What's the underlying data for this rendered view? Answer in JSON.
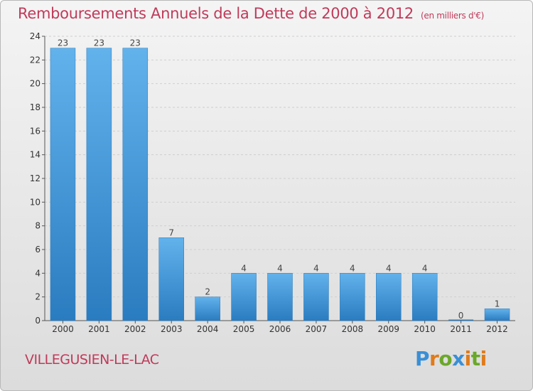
{
  "title": "Remboursements Annuels de la Dette de 2000 à 2012",
  "subtitle": "(en milliers d'€)",
  "place": "VILLEGUSIEN-LE-LAC",
  "logo": {
    "text": "Proxiti",
    "letters": [
      "P",
      "r",
      "o",
      "x",
      "i",
      "t",
      "i"
    ],
    "colors": [
      "#3a8fd6",
      "#e07b1a",
      "#6aa82a",
      "#3a8fd6",
      "#e07b1a",
      "#6aa82a",
      "#e07b1a"
    ]
  },
  "colors": {
    "title": "#c03a5a",
    "bar_top": "#62b2ec",
    "bar_bottom": "#2a7cc0",
    "grid": "#cfcfcf"
  },
  "chart_data": {
    "type": "bar",
    "categories": [
      "2000",
      "2001",
      "2002",
      "2003",
      "2004",
      "2005",
      "2006",
      "2007",
      "2008",
      "2009",
      "2010",
      "2011",
      "2012"
    ],
    "values": [
      23,
      23,
      23,
      7,
      2,
      4,
      4,
      4,
      4,
      4,
      4,
      0,
      1
    ],
    "data_labels": [
      "23",
      "23",
      "23",
      "7",
      "2",
      "4",
      "4",
      "4",
      "4",
      "4",
      "4",
      "0",
      "1"
    ],
    "title": "Remboursements Annuels de la Dette de 2000 à 2012",
    "subtitle": "(en milliers d'€)",
    "xlabel": "",
    "ylabel": "",
    "ylim": [
      0,
      24
    ],
    "yticks": [
      "0",
      "2",
      "4",
      "6",
      "8",
      "10",
      "12",
      "14",
      "16",
      "18",
      "20",
      "22",
      "24"
    ],
    "grid": true,
    "legend": "none"
  }
}
